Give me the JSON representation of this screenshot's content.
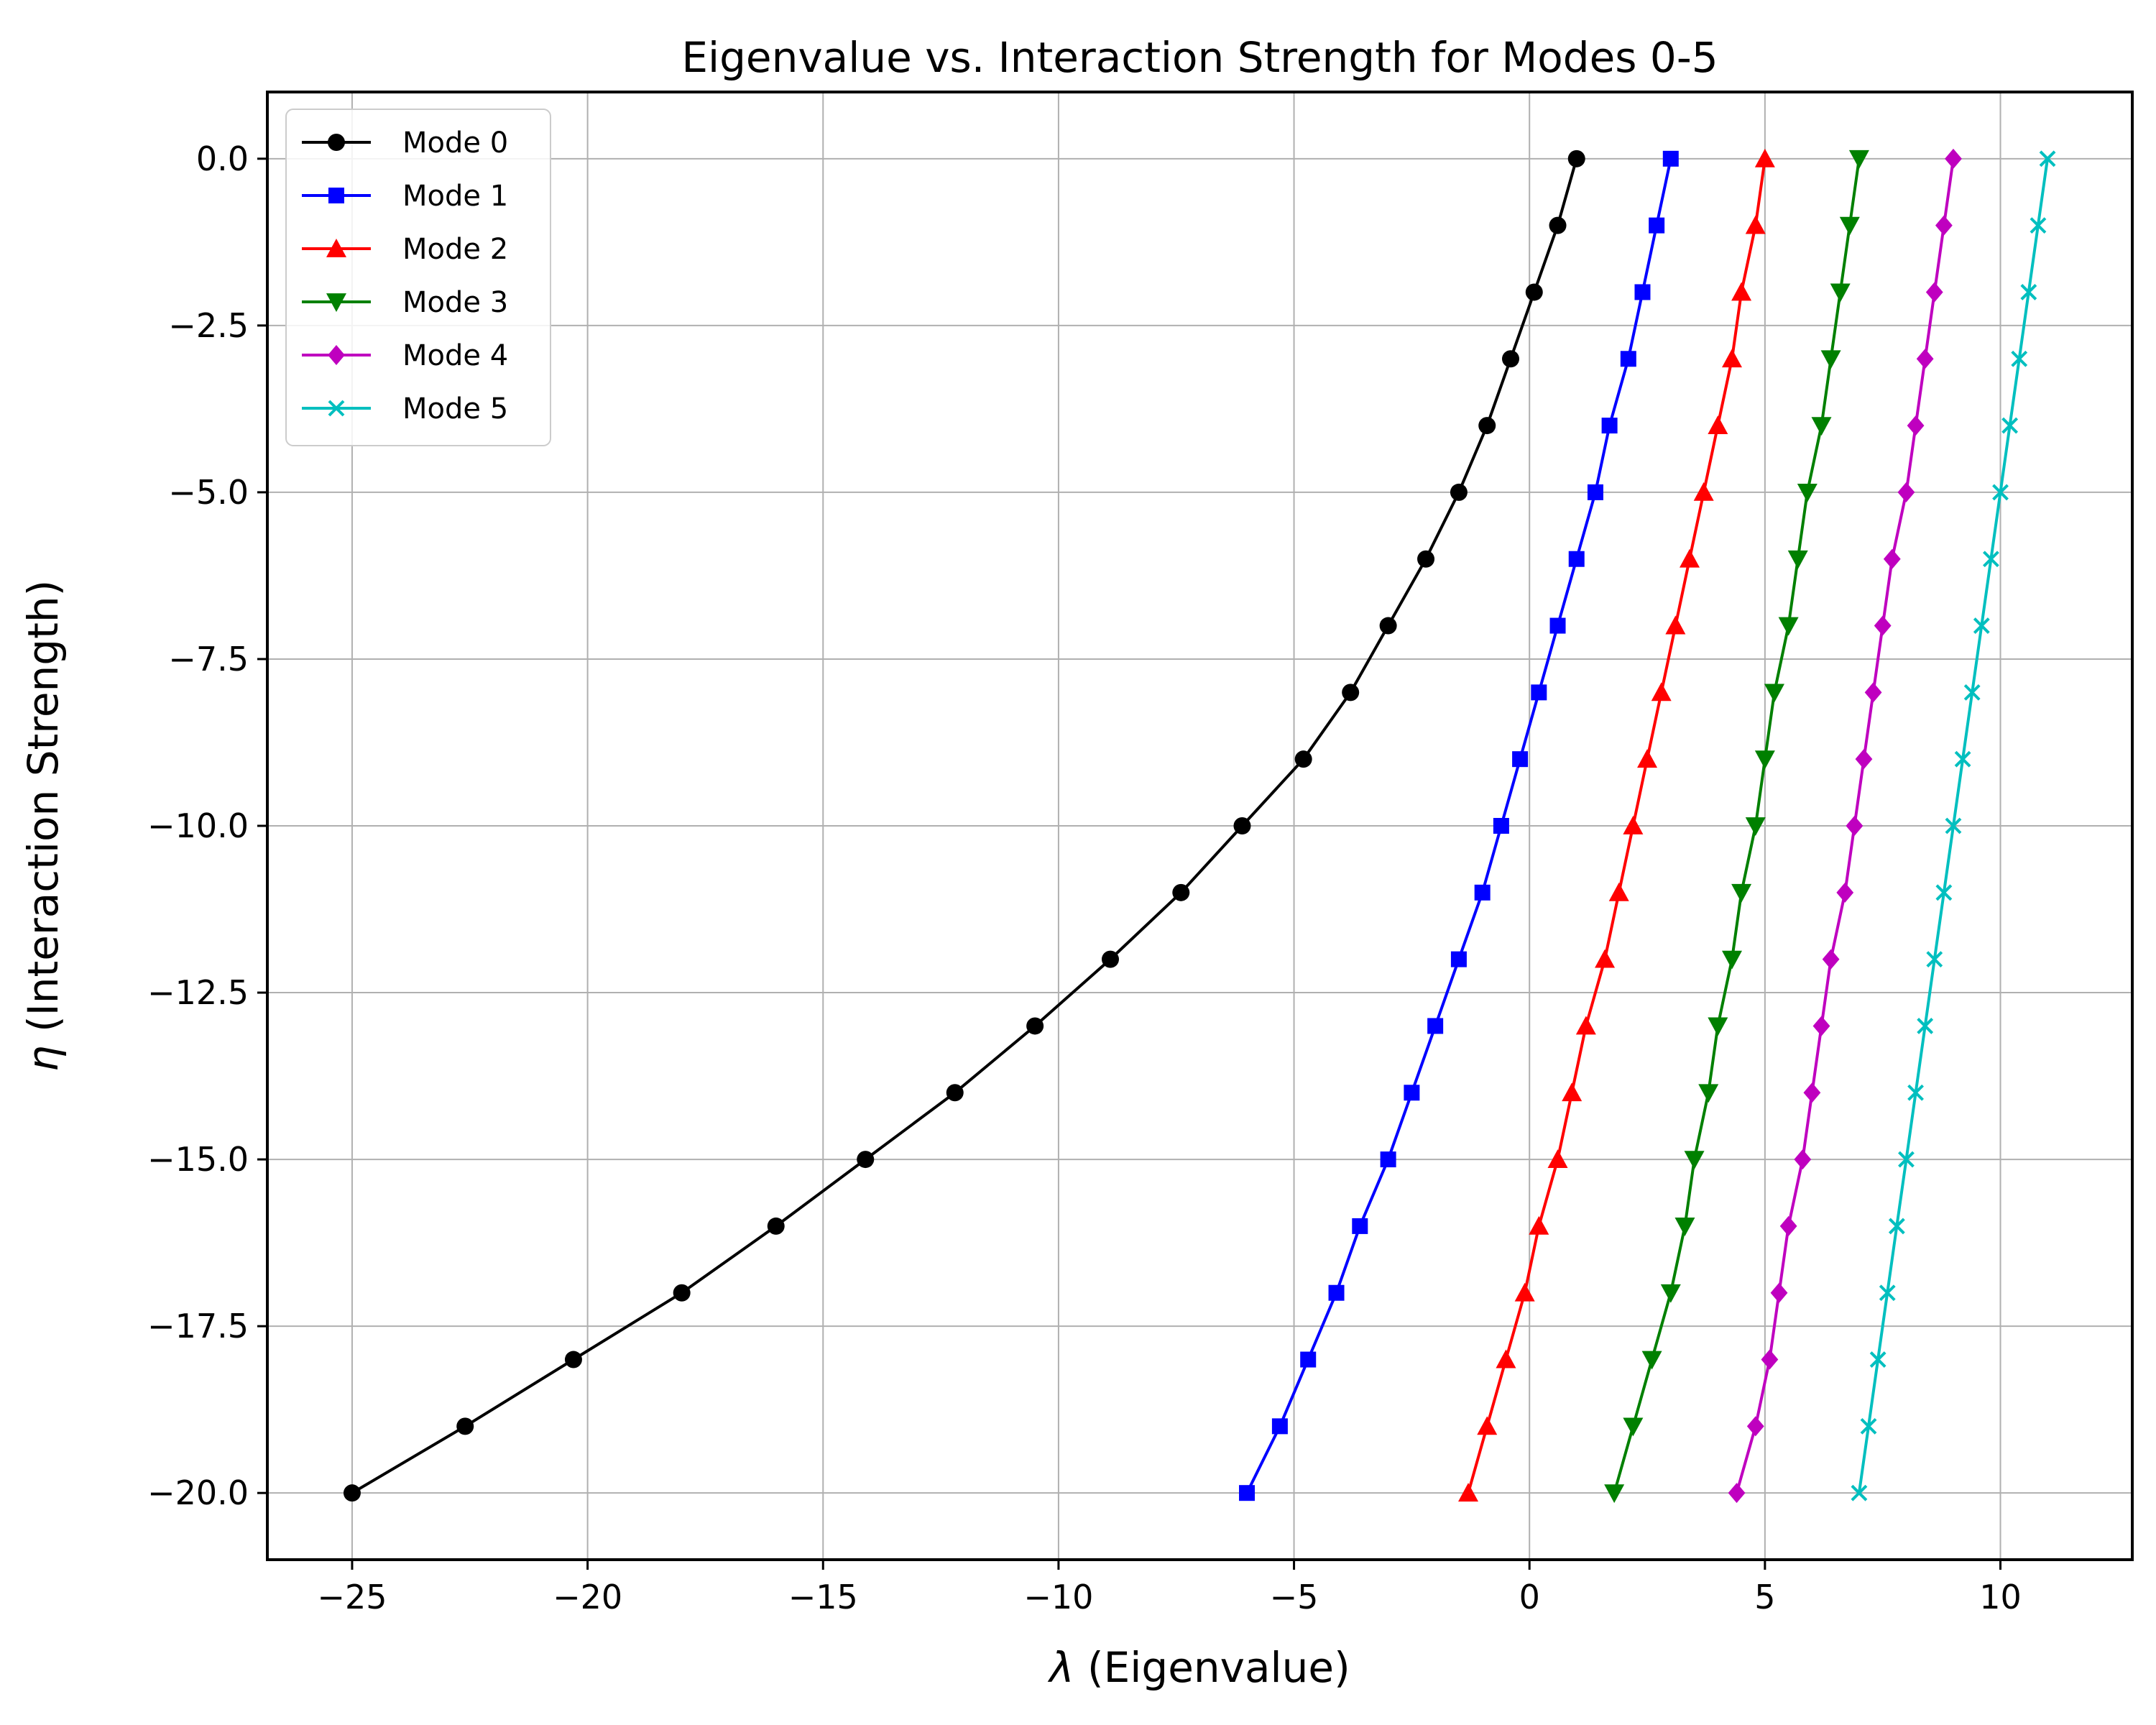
{
  "chart_data": {
    "type": "line",
    "title": "Eigenvalue vs. Interaction Strength for Modes 0-5",
    "xlabel_symbol": "λ",
    "xlabel_text": " (Eigenvalue)",
    "ylabel_symbol": "η",
    "ylabel_text": " (Interaction Strength)",
    "xlim": [
      -26.8,
      12.8
    ],
    "ylim": [
      -21.0,
      1.0
    ],
    "xticks": [
      -25,
      -20,
      -15,
      -10,
      -5,
      0,
      5,
      10
    ],
    "xtick_labels": [
      "−25",
      "−20",
      "−15",
      "−10",
      "−5",
      "0",
      "5",
      "10"
    ],
    "yticks": [
      0,
      -2.5,
      -5,
      -7.5,
      -10,
      -12.5,
      -15,
      -17.5,
      -20
    ],
    "ytick_labels": [
      "0.0",
      "−2.5",
      "−5.0",
      "−7.5",
      "−10.0",
      "−12.5",
      "−15.0",
      "−17.5",
      "−20.0"
    ],
    "grid": true,
    "legend_position": "top-left",
    "y": [
      0,
      -1,
      -2,
      -3,
      -4,
      -5,
      -6,
      -7,
      -8,
      -9,
      -10,
      -11,
      -12,
      -13,
      -14,
      -15,
      -16,
      -17,
      -18,
      -19,
      -20
    ],
    "series": [
      {
        "name": "Mode 0",
        "color": "#000000",
        "marker": "circle",
        "x": [
          1.0,
          0.6,
          0.1,
          -0.4,
          -0.9,
          -1.5,
          -2.2,
          -3.0,
          -3.8,
          -4.8,
          -6.1,
          -7.4,
          -8.9,
          -10.5,
          -12.2,
          -14.1,
          -16.0,
          -18.0,
          -20.3,
          -22.6,
          -25.0
        ]
      },
      {
        "name": "Mode 1",
        "color": "#0000ff",
        "marker": "square",
        "x": [
          3.0,
          2.7,
          2.4,
          2.1,
          1.7,
          1.4,
          1.0,
          0.6,
          0.2,
          -0.2,
          -0.6,
          -1.0,
          -1.5,
          -2.0,
          -2.5,
          -3.0,
          -3.6,
          -4.1,
          -4.7,
          -5.3,
          -6.0
        ]
      },
      {
        "name": "Mode 2",
        "color": "#ff0000",
        "marker": "triangle-up",
        "x": [
          5.0,
          4.8,
          4.5,
          4.3,
          4.0,
          3.7,
          3.4,
          3.1,
          2.8,
          2.5,
          2.2,
          1.9,
          1.6,
          1.2,
          0.9,
          0.6,
          0.2,
          -0.1,
          -0.5,
          -0.9,
          -1.3
        ]
      },
      {
        "name": "Mode 3",
        "color": "#008000",
        "marker": "triangle-down",
        "x": [
          7.0,
          6.8,
          6.6,
          6.4,
          6.2,
          5.9,
          5.7,
          5.5,
          5.2,
          5.0,
          4.8,
          4.5,
          4.3,
          4.0,
          3.8,
          3.5,
          3.3,
          3.0,
          2.6,
          2.2,
          1.8
        ]
      },
      {
        "name": "Mode 4",
        "color": "#bf00bf",
        "marker": "diamond",
        "x": [
          9.0,
          8.8,
          8.6,
          8.4,
          8.2,
          8.0,
          7.7,
          7.5,
          7.3,
          7.1,
          6.9,
          6.7,
          6.4,
          6.2,
          6.0,
          5.8,
          5.5,
          5.3,
          5.1,
          4.8,
          4.4
        ]
      },
      {
        "name": "Mode 5",
        "color": "#00bfbf",
        "marker": "x",
        "x": [
          11.0,
          10.8,
          10.6,
          10.4,
          10.2,
          10.0,
          9.8,
          9.6,
          9.4,
          9.2,
          9.0,
          8.8,
          8.6,
          8.4,
          8.2,
          8.0,
          7.8,
          7.6,
          7.4,
          7.2,
          7.0
        ]
      }
    ]
  }
}
